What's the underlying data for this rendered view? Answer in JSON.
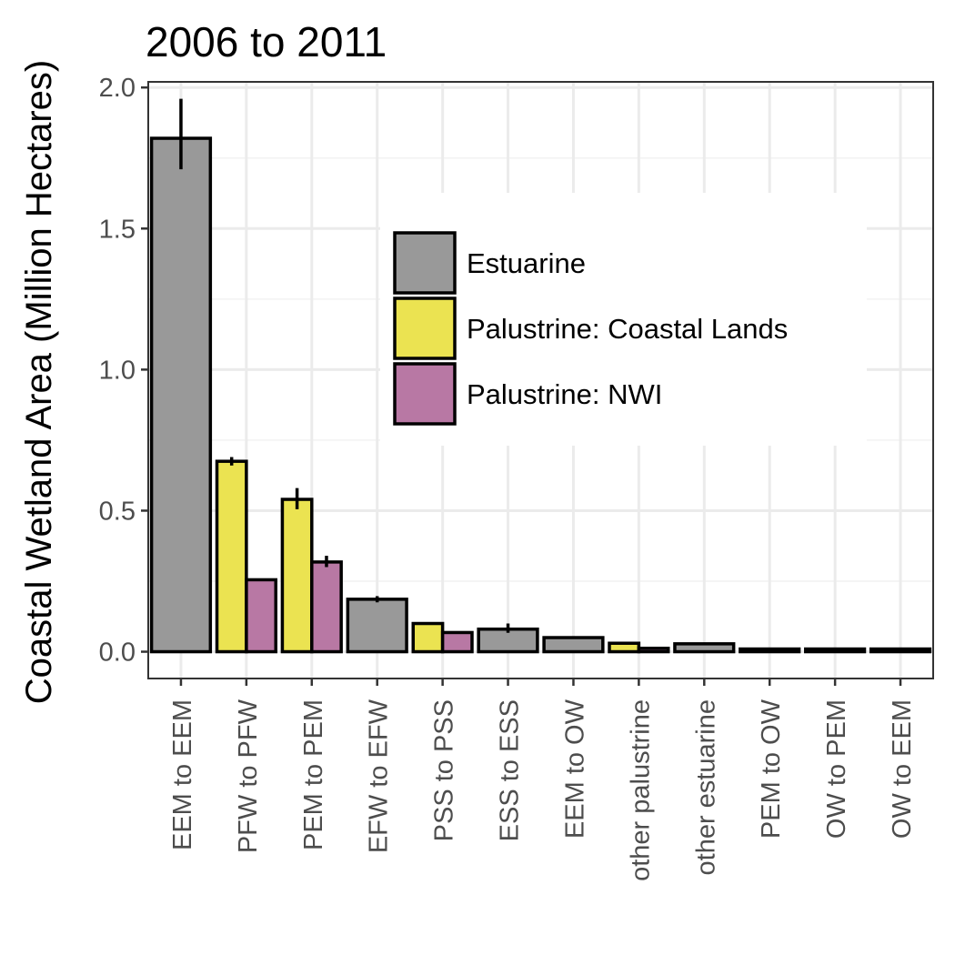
{
  "chart_data": {
    "type": "bar",
    "title": "2006 to 2011",
    "ylabel": "Coastal Wetland Area (Million Hectares)",
    "xlabel": "",
    "ylim": [
      -0.095,
      2.02
    ],
    "yticks": [
      0.0,
      0.5,
      1.0,
      1.5,
      2.0
    ],
    "ytick_labels": [
      "0.0",
      "0.5",
      "1.0",
      "1.5",
      "2.0"
    ],
    "grid": true,
    "legend_position": "top-right",
    "colors": {
      "Estuarine": "#999999",
      "Palustrine: Coastal Lands": "#ebe351",
      "Palustrine: NWI": "#b878a4"
    },
    "legend": [
      "Estuarine",
      "Palustrine: Coastal Lands",
      "Palustrine: NWI"
    ],
    "categories": [
      "EEM to EEM",
      "PFW to PFW",
      "PEM to PEM",
      "EFW to EFW",
      "PSS to PSS",
      "ESS to ESS",
      "EEM to OW",
      "other palustrine",
      "other estuarine",
      "PEM to OW",
      "OW to PEM",
      "OW to EEM"
    ],
    "bars": [
      {
        "category": "EEM to EEM",
        "group": "Estuarine",
        "value": 1.82,
        "err_low": 1.71,
        "err_high": 1.96
      },
      {
        "category": "PFW to PFW",
        "group": "Palustrine: Coastal Lands",
        "value": 0.675,
        "err_low": 0.66,
        "err_high": 0.69
      },
      {
        "category": "PFW to PFW",
        "group": "Palustrine: NWI",
        "value": 0.255,
        "err_low": 0.255,
        "err_high": 0.255
      },
      {
        "category": "PEM to PEM",
        "group": "Palustrine: Coastal Lands",
        "value": 0.54,
        "err_low": 0.505,
        "err_high": 0.58
      },
      {
        "category": "PEM to PEM",
        "group": "Palustrine: NWI",
        "value": 0.318,
        "err_low": 0.3,
        "err_high": 0.34
      },
      {
        "category": "EFW to EFW",
        "group": "Estuarine",
        "value": 0.186,
        "err_low": 0.175,
        "err_high": 0.197
      },
      {
        "category": "PSS to PSS",
        "group": "Palustrine: Coastal Lands",
        "value": 0.1,
        "err_low": 0.1,
        "err_high": 0.1
      },
      {
        "category": "PSS to PSS",
        "group": "Palustrine: NWI",
        "value": 0.068,
        "err_low": 0.068,
        "err_high": 0.068
      },
      {
        "category": "ESS to ESS",
        "group": "Estuarine",
        "value": 0.08,
        "err_low": 0.067,
        "err_high": 0.1
      },
      {
        "category": "EEM to OW",
        "group": "Estuarine",
        "value": 0.05,
        "err_low": 0.05,
        "err_high": 0.05
      },
      {
        "category": "other palustrine",
        "group": "Palustrine: Coastal Lands",
        "value": 0.03,
        "err_low": 0.03,
        "err_high": 0.03
      },
      {
        "category": "other palustrine",
        "group": "Palustrine: NWI",
        "value": 0.012,
        "err_low": 0.012,
        "err_high": 0.012
      },
      {
        "category": "other estuarine",
        "group": "Estuarine",
        "value": 0.028,
        "err_low": 0.028,
        "err_high": 0.028
      },
      {
        "category": "PEM to OW",
        "group": "Estuarine",
        "value": 0.006,
        "err_low": 0.006,
        "err_high": 0.006
      },
      {
        "category": "OW to PEM",
        "group": "Estuarine",
        "value": 0.006,
        "err_low": 0.006,
        "err_high": 0.006
      },
      {
        "category": "OW to EEM",
        "group": "Estuarine",
        "value": 0.005,
        "err_low": 0.005,
        "err_high": 0.005
      }
    ]
  }
}
